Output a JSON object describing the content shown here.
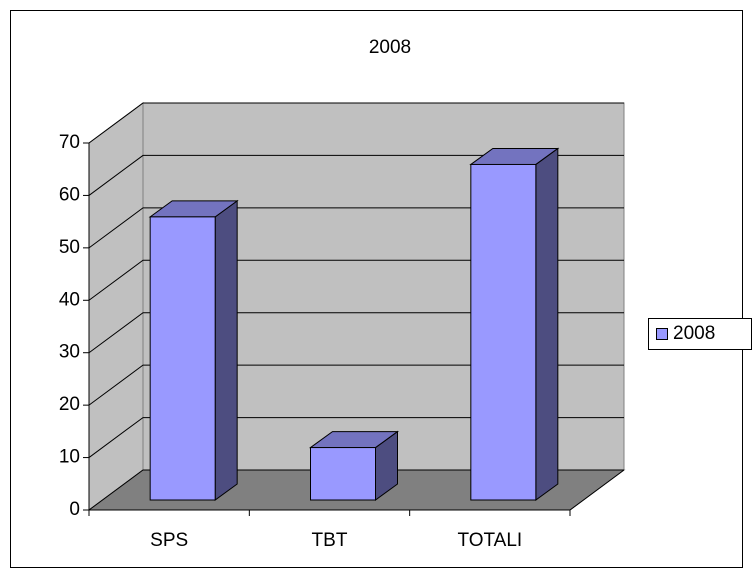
{
  "chart_data": {
    "type": "bar",
    "title": "2008",
    "categories": [
      "SPS",
      "TBT",
      "TOTALI"
    ],
    "series": [
      {
        "name": "2008",
        "color": "#9999ff",
        "values": [
          54,
          10,
          64
        ]
      }
    ],
    "ylim": [
      0,
      70
    ],
    "yticks": [
      0,
      10,
      20,
      30,
      40,
      50,
      60,
      70
    ],
    "grid": true,
    "legend": "right"
  }
}
